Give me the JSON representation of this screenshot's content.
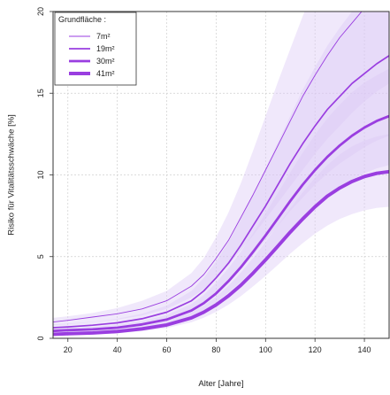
{
  "chart_data": {
    "type": "line",
    "title": "",
    "xlabel": "Alter [Jahre]",
    "ylabel": "Risiko für Vitalitätsschwäche [%]",
    "xlim": [
      14,
      150
    ],
    "ylim": [
      0,
      20
    ],
    "xticks": [
      20,
      40,
      60,
      80,
      100,
      120,
      140
    ],
    "yticks": [
      0,
      5,
      10,
      15,
      20
    ],
    "grid": true,
    "legend": {
      "title": "Grundfläche :",
      "placement": "top-left",
      "entries": [
        "7m²",
        "19m²",
        "30m²",
        "41m²"
      ]
    },
    "colors": {
      "line": "#9a3ee0",
      "band": "#dcc8f5",
      "grid": "#cfcfcf"
    },
    "series": [
      {
        "name": "7m²",
        "x": [
          14,
          20,
          30,
          40,
          50,
          60,
          70,
          75,
          80,
          85,
          90,
          95,
          100,
          105,
          110,
          115,
          120,
          125,
          130,
          135,
          140,
          145,
          150
        ],
        "values": [
          1.0,
          1.1,
          1.3,
          1.5,
          1.8,
          2.3,
          3.2,
          3.9,
          4.9,
          6.0,
          7.4,
          8.8,
          10.3,
          11.8,
          13.3,
          14.8,
          16.1,
          17.3,
          18.4,
          19.3,
          20.2,
          20.9,
          21.5
        ],
        "lower": [
          0.8,
          0.85,
          1.0,
          1.15,
          1.4,
          1.8,
          2.5,
          3.0,
          3.7,
          4.5,
          5.4,
          6.3,
          7.3,
          8.3,
          9.3,
          10.3,
          11.3,
          12.2,
          13.0,
          13.8,
          14.5,
          15.1,
          15.6
        ],
        "upper": [
          1.25,
          1.35,
          1.55,
          1.85,
          2.3,
          2.9,
          4.0,
          4.9,
          6.2,
          7.7,
          9.5,
          11.5,
          13.6,
          15.7,
          17.7,
          19.7,
          21.5,
          23.2,
          24.8,
          26.2,
          27.5,
          28.6,
          29.6
        ]
      },
      {
        "name": "19m²",
        "x": [
          14,
          20,
          30,
          40,
          50,
          60,
          70,
          75,
          80,
          85,
          90,
          95,
          100,
          105,
          110,
          115,
          120,
          125,
          130,
          135,
          140,
          145,
          150
        ],
        "values": [
          0.65,
          0.7,
          0.8,
          0.95,
          1.2,
          1.6,
          2.3,
          2.9,
          3.7,
          4.6,
          5.7,
          6.9,
          8.1,
          9.4,
          10.7,
          11.9,
          13.0,
          14.0,
          14.8,
          15.6,
          16.2,
          16.8,
          17.3
        ],
        "lower": [
          0.5,
          0.55,
          0.62,
          0.75,
          0.95,
          1.25,
          1.8,
          2.25,
          2.85,
          3.5,
          4.3,
          5.1,
          6.0,
          6.9,
          7.8,
          8.6,
          9.4,
          10.1,
          10.7,
          11.2,
          11.7,
          12.1,
          12.4
        ],
        "upper": [
          0.85,
          0.9,
          1.02,
          1.2,
          1.5,
          2.0,
          2.9,
          3.7,
          4.7,
          5.9,
          7.3,
          8.8,
          10.4,
          12.0,
          13.6,
          15.2,
          16.6,
          17.9,
          19.0,
          20.0,
          20.9,
          21.7,
          22.3
        ]
      },
      {
        "name": "30m²",
        "x": [
          14,
          20,
          30,
          40,
          50,
          60,
          70,
          75,
          80,
          85,
          90,
          95,
          100,
          105,
          110,
          115,
          120,
          125,
          130,
          135,
          140,
          145,
          150
        ],
        "values": [
          0.45,
          0.5,
          0.55,
          0.65,
          0.85,
          1.15,
          1.7,
          2.15,
          2.75,
          3.5,
          4.35,
          5.3,
          6.3,
          7.35,
          8.4,
          9.4,
          10.3,
          11.1,
          11.8,
          12.4,
          12.9,
          13.3,
          13.6
        ],
        "lower": [
          0.35,
          0.38,
          0.42,
          0.5,
          0.67,
          0.92,
          1.36,
          1.72,
          2.2,
          2.8,
          3.45,
          4.2,
          5.0,
          5.8,
          6.6,
          7.4,
          8.1,
          8.7,
          9.2,
          9.7,
          10.1,
          10.4,
          10.6
        ],
        "upper": [
          0.58,
          0.62,
          0.7,
          0.82,
          1.05,
          1.42,
          2.1,
          2.65,
          3.4,
          4.3,
          5.3,
          6.45,
          7.65,
          8.9,
          10.15,
          11.35,
          12.45,
          13.45,
          14.3,
          15.05,
          15.65,
          16.1,
          16.5
        ]
      },
      {
        "name": "41m²",
        "x": [
          14,
          20,
          30,
          40,
          50,
          60,
          70,
          75,
          80,
          85,
          90,
          95,
          100,
          105,
          110,
          115,
          120,
          125,
          130,
          135,
          140,
          145,
          150
        ],
        "values": [
          0.25,
          0.28,
          0.33,
          0.42,
          0.58,
          0.82,
          1.25,
          1.6,
          2.05,
          2.6,
          3.25,
          4.0,
          4.8,
          5.65,
          6.5,
          7.3,
          8.05,
          8.7,
          9.2,
          9.6,
          9.9,
          10.1,
          10.2
        ],
        "lower": [
          0.18,
          0.2,
          0.24,
          0.31,
          0.44,
          0.63,
          0.98,
          1.26,
          1.62,
          2.06,
          2.58,
          3.18,
          3.82,
          4.5,
          5.18,
          5.82,
          6.4,
          6.9,
          7.3,
          7.6,
          7.83,
          7.98,
          8.05
        ],
        "upper": [
          0.34,
          0.37,
          0.43,
          0.55,
          0.75,
          1.05,
          1.58,
          2.0,
          2.55,
          3.22,
          4.02,
          4.92,
          5.9,
          6.92,
          7.95,
          8.92,
          9.82,
          10.6,
          11.25,
          11.75,
          12.1,
          12.35,
          12.5
        ]
      }
    ]
  }
}
